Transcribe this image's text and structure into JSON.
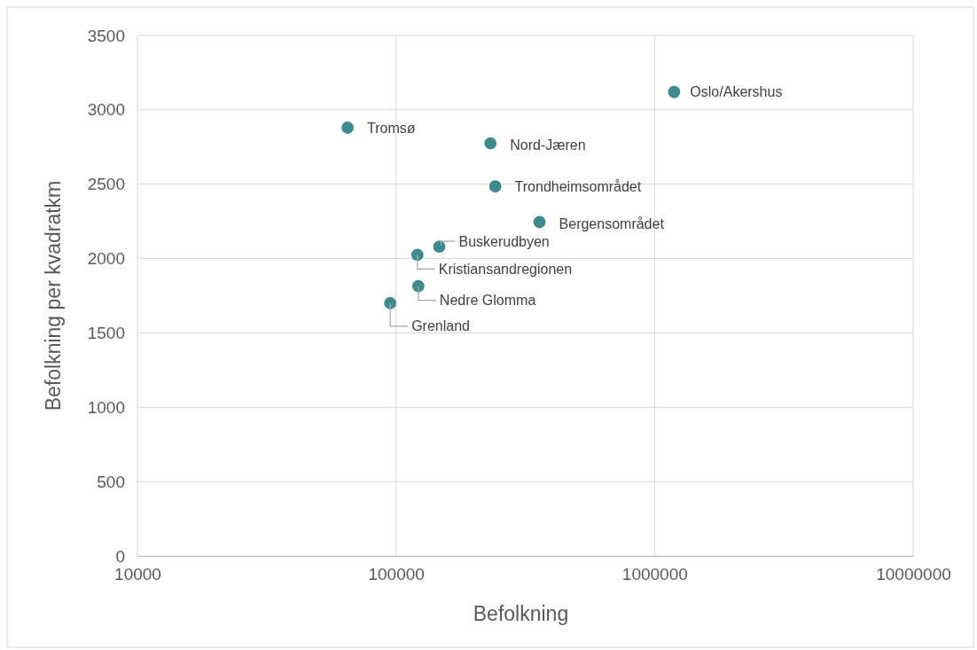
{
  "chart_data": {
    "type": "scatter",
    "xlabel": "Befolkning",
    "ylabel": "Befolkning per kvadratkm",
    "log": "x",
    "xlim": [
      10000,
      10000000
    ],
    "xticks": [
      10000,
      100000,
      1000000,
      10000000
    ],
    "ylim": [
      0,
      3500
    ],
    "yticks": [
      0,
      500,
      1000,
      1500,
      2000,
      2500,
      3000,
      3500
    ],
    "grid": true,
    "marker": "circle",
    "series": [
      {
        "name": "Oslo/Akershus",
        "color": "#3f8a8f",
        "x": [
          1190000
        ],
        "values": [
          3120
        ]
      },
      {
        "name": "Tromsø",
        "color": "#3f8a8f",
        "x": [
          65000
        ],
        "values": [
          2880
        ]
      },
      {
        "name": "Nord-Jæren",
        "color": "#3f8a8f",
        "x": [
          232000
        ],
        "values": [
          2775
        ]
      },
      {
        "name": "Trondheimsområdet",
        "color": "#3f8a8f",
        "x": [
          242000
        ],
        "values": [
          2485
        ]
      },
      {
        "name": "Bergensområdet",
        "color": "#3f8a8f",
        "x": [
          359000
        ],
        "values": [
          2245
        ]
      },
      {
        "name": "Buskerudbyen",
        "color": "#3f8a8f",
        "x": [
          147000
        ],
        "values": [
          2080
        ]
      },
      {
        "name": "Kristiansandregionen",
        "color": "#3f8a8f",
        "x": [
          121000
        ],
        "values": [
          2025
        ]
      },
      {
        "name": "Nedre Glomma",
        "color": "#3f8a8f",
        "x": [
          122000
        ],
        "values": [
          1815
        ]
      },
      {
        "name": "Grenland",
        "color": "#3f8a8f",
        "x": [
          95000
        ],
        "values": [
          1700
        ]
      }
    ]
  }
}
